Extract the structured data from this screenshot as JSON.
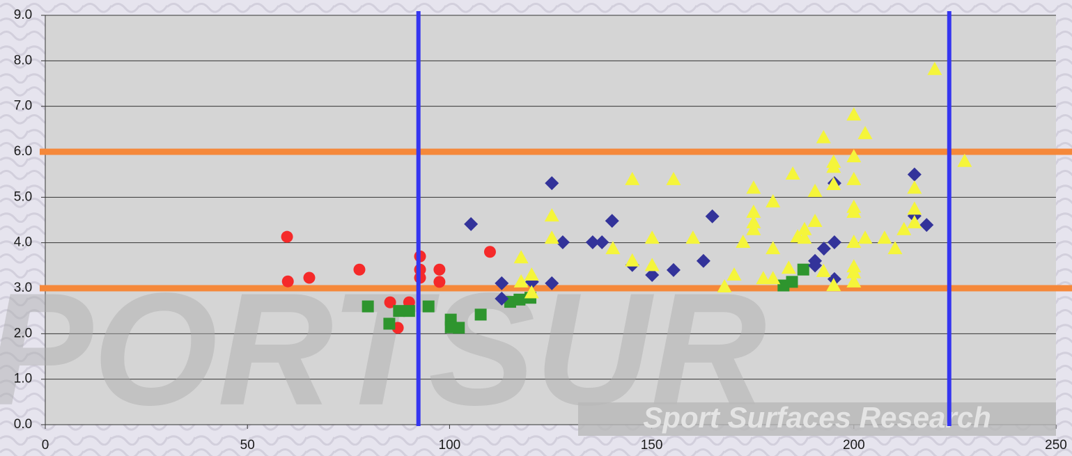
{
  "chart_data": {
    "type": "scatter",
    "xlim": [
      0,
      250
    ],
    "xticks": [
      0,
      50,
      100,
      150,
      200,
      250
    ],
    "ylim": [
      0,
      9
    ],
    "yticks": [
      {
        "value": 0,
        "label": "0.0"
      },
      {
        "value": 1,
        "label": "1.0"
      },
      {
        "value": 2,
        "label": "2.0"
      },
      {
        "value": 3,
        "label": "3.0"
      },
      {
        "value": 4,
        "label": "4.0"
      },
      {
        "value": 5,
        "label": "5.0"
      },
      {
        "value": 6,
        "label": "6.0"
      },
      {
        "value": 7,
        "label": "7.0"
      },
      {
        "value": 8,
        "label": "8.0"
      },
      {
        "value": 9,
        "label": "9.0"
      }
    ],
    "grid": true,
    "annotations": [
      "PORTSUR",
      "Sport Surfaces Research"
    ],
    "vertical_lines": {
      "color": "#3535f0",
      "x": [
        92.3,
        223.6
      ]
    },
    "horizontal_lines": {
      "color": "#f5883a",
      "y": [
        3.0,
        6.0
      ]
    },
    "series": [
      {
        "color": "#f52a2a",
        "marker": "circle",
        "x": [
          59.8,
          60.0,
          65.3,
          77.7,
          85.3,
          87.2,
          90.0,
          92.7,
          92.7,
          92.7,
          97.5,
          97.5,
          110.0
        ],
        "values": [
          4.13,
          3.15,
          3.23,
          3.41,
          2.69,
          2.13,
          2.69,
          3.7,
          3.41,
          3.23,
          3.41,
          3.14,
          3.8
        ]
      },
      {
        "color": "#2e952e",
        "marker": "square",
        "x": [
          79.8,
          85.1,
          87.5,
          90.0,
          94.8,
          100.3,
          100.3,
          102.3,
          107.7,
          115.0,
          117.3,
          120.0,
          182.6,
          184.7,
          187.5
        ],
        "values": [
          2.6,
          2.22,
          2.5,
          2.5,
          2.6,
          2.31,
          2.14,
          2.13,
          2.42,
          2.7,
          2.75,
          2.79,
          3.06,
          3.14,
          3.41
        ]
      },
      {
        "color": "#33339a",
        "marker": "diamond",
        "x": [
          105.3,
          112.9,
          112.9,
          120.4,
          125.3,
          125.3,
          128.0,
          135.4,
          137.7,
          140.2,
          145.2,
          150.1,
          155.4,
          162.8,
          165.0,
          190.4,
          190.4,
          192.6,
          195.2,
          195.2,
          195.2,
          215.0,
          215.0,
          218.0
        ],
        "values": [
          4.41,
          3.11,
          2.77,
          3.14,
          5.31,
          3.11,
          4.01,
          4.01,
          4.01,
          4.48,
          3.51,
          3.29,
          3.4,
          3.6,
          4.58,
          3.6,
          3.5,
          3.87,
          5.31,
          4.01,
          3.2,
          5.5,
          4.59,
          4.39
        ]
      },
      {
        "color": "#f5f53a",
        "marker": "triangle",
        "x": [
          117.7,
          117.7,
          120.3,
          120.3,
          125.3,
          125.3,
          140.4,
          145.2,
          145.2,
          150.1,
          150.1,
          155.4,
          160.2,
          168.0,
          170.4,
          172.6,
          175.2,
          175.2,
          175.2,
          175.2,
          177.6,
          180.0,
          180.0,
          180.0,
          183.9,
          184.9,
          186.1,
          187.8,
          187.8,
          190.4,
          190.4,
          192.5,
          192.5,
          195.0,
          195.0,
          195.0,
          195.0,
          200.0,
          200.0,
          200.0,
          200.0,
          200.0,
          200.0,
          200.0,
          200.0,
          200.0,
          202.8,
          202.8,
          207.6,
          210.2,
          212.4,
          215.0,
          215.0,
          215.0,
          220.0,
          227.4
        ],
        "values": [
          3.67,
          3.14,
          3.29,
          2.9,
          4.59,
          4.1,
          3.87,
          5.39,
          3.6,
          4.1,
          3.5,
          5.39,
          4.1,
          3.03,
          3.29,
          4.01,
          5.2,
          4.67,
          4.44,
          4.29,
          3.21,
          4.9,
          3.87,
          3.21,
          3.44,
          5.51,
          4.13,
          4.29,
          4.1,
          5.13,
          4.47,
          6.31,
          3.37,
          5.77,
          5.66,
          5.28,
          3.06,
          6.81,
          5.89,
          5.39,
          4.78,
          4.67,
          4.01,
          3.47,
          3.34,
          3.14,
          6.4,
          4.1,
          4.1,
          3.87,
          4.29,
          5.2,
          4.74,
          4.44,
          7.81,
          5.79
        ]
      }
    ]
  }
}
